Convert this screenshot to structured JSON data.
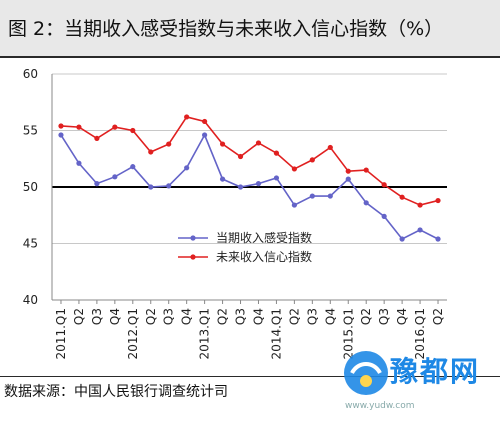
{
  "header": {
    "title": "图 2：当期收入感受指数与未来收入信心指数（%）"
  },
  "footer": {
    "source": "数据来源：中国人民银行调查统计司"
  },
  "watermark": {
    "text": "豫都网",
    "url": "www.yudw.com"
  },
  "colors": {
    "series_current": "#6464c8",
    "series_future": "#e02020",
    "baseline": "#000000"
  },
  "chart_data": {
    "type": "line",
    "categories": [
      "2011.Q1",
      "Q2",
      "Q3",
      "Q4",
      "2012.Q1",
      "Q2",
      "Q3",
      "Q4",
      "2013.Q1",
      "Q2",
      "Q3",
      "Q4",
      "2014.Q1",
      "Q2",
      "Q3",
      "Q4",
      "2015.Q1",
      "Q2",
      "Q3",
      "Q4",
      "2016.Q1",
      "Q2"
    ],
    "series": [
      {
        "name": "当期收入感受指数",
        "values": [
          54.6,
          52.1,
          50.3,
          50.9,
          51.8,
          50.0,
          50.1,
          51.7,
          54.6,
          50.7,
          50.0,
          50.3,
          50.8,
          48.4,
          49.2,
          49.2,
          50.7,
          48.6,
          47.4,
          45.4,
          46.2,
          45.4
        ]
      },
      {
        "name": "未来收入信心指数",
        "values": [
          55.4,
          55.3,
          54.3,
          55.3,
          55.0,
          53.1,
          53.8,
          56.2,
          55.8,
          53.8,
          52.7,
          53.9,
          53.0,
          51.6,
          52.4,
          53.5,
          51.4,
          51.5,
          50.2,
          49.1,
          48.4,
          48.8
        ]
      }
    ],
    "ylim": [
      40,
      60
    ],
    "yticks": [
      40,
      45,
      50,
      55,
      60
    ],
    "grid": true,
    "legend_position": "center-right"
  }
}
